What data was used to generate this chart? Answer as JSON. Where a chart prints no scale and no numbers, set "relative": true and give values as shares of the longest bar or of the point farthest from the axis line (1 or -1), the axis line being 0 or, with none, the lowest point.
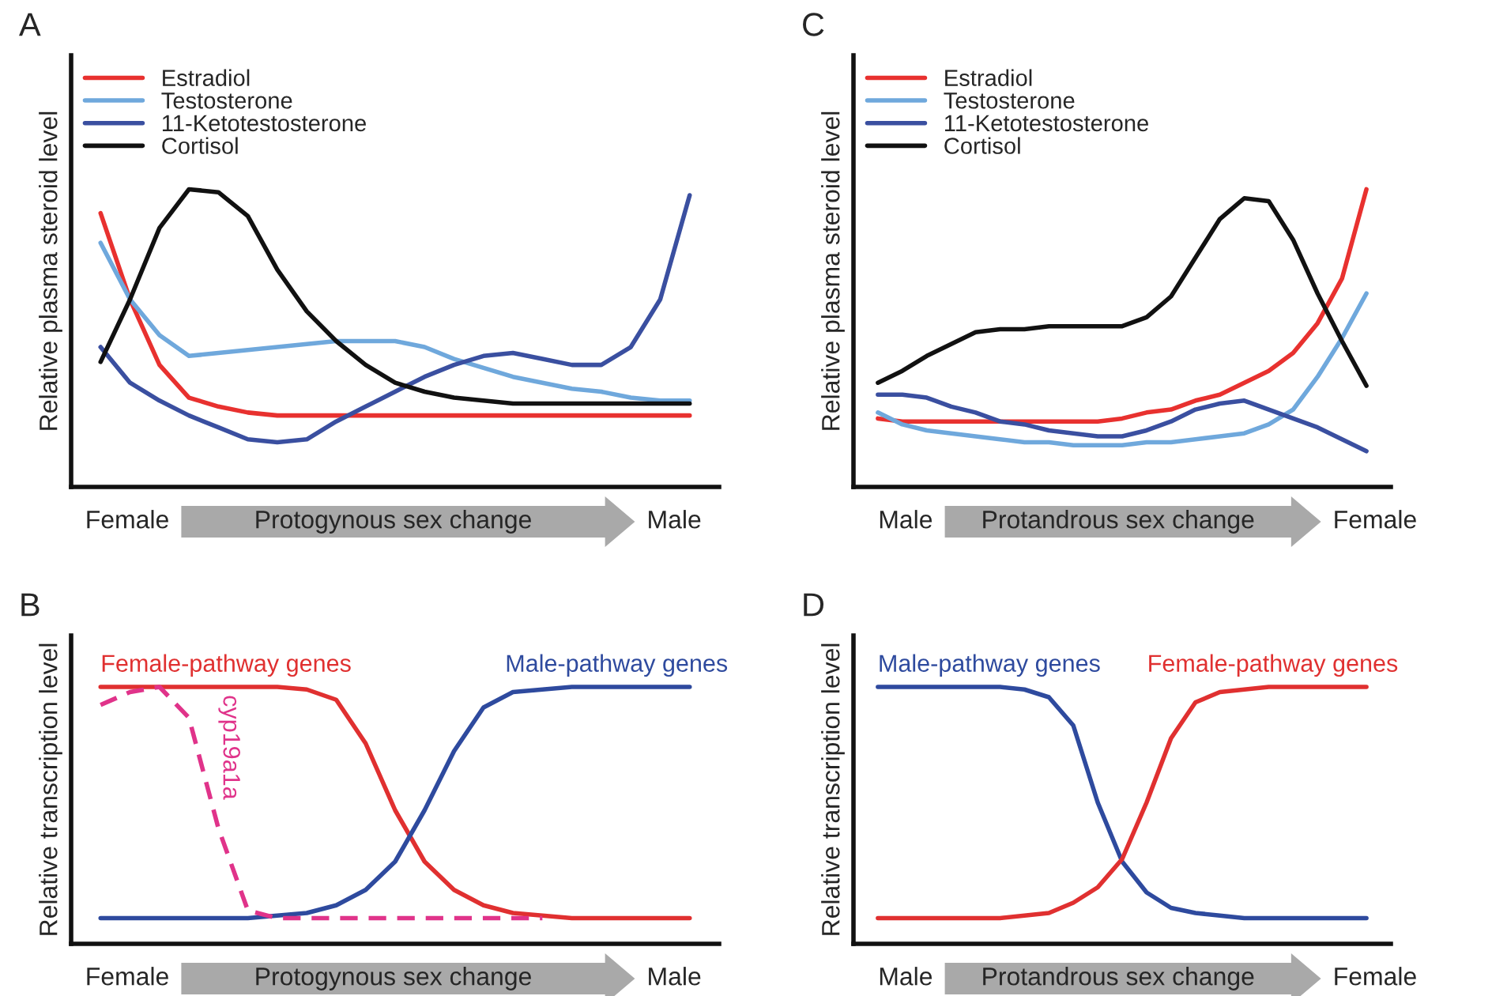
{
  "chart_data": [
    {
      "type": "line",
      "title": "A",
      "ylabel": "Relative plasma steroid level",
      "relative": true,
      "tick_labels": false,
      "legend": "top left",
      "categories": [
        null,
        null,
        null,
        null,
        null,
        null,
        null,
        null,
        null,
        null,
        null,
        null,
        null,
        null,
        null,
        null,
        null,
        null,
        null,
        null,
        null
      ],
      "series": [
        {
          "name": "Estradiol",
          "color": "#e8312f",
          "values": [
            0.92,
            0.63,
            0.41,
            0.3,
            0.27,
            0.25,
            0.24,
            0.24,
            0.24,
            0.24,
            0.24,
            0.24,
            0.24,
            0.24,
            0.24,
            0.24,
            0.24,
            0.24,
            0.24,
            0.24,
            0.24
          ]
        },
        {
          "name": "Testosterone",
          "color": "#6fa8dc",
          "values": [
            0.82,
            0.63,
            0.51,
            0.44,
            0.45,
            0.46,
            0.47,
            0.48,
            0.49,
            0.49,
            0.49,
            0.47,
            0.43,
            0.4,
            0.37,
            0.35,
            0.33,
            0.32,
            0.3,
            0.29,
            0.29
          ]
        },
        {
          "name": "11-Ketotestosterone",
          "color": "#3a4fa0",
          "values": [
            0.47,
            0.35,
            0.29,
            0.24,
            0.2,
            0.16,
            0.15,
            0.16,
            0.22,
            0.27,
            0.32,
            0.37,
            0.41,
            0.44,
            0.45,
            0.43,
            0.41,
            0.41,
            0.47,
            0.63,
            0.98
          ]
        },
        {
          "name": "Cortisol",
          "color": "#111111",
          "values": [
            0.42,
            0.63,
            0.87,
            1.0,
            0.99,
            0.91,
            0.73,
            0.59,
            0.49,
            0.41,
            0.35,
            0.32,
            0.3,
            0.29,
            0.28,
            0.28,
            0.28,
            0.28,
            0.28,
            0.28,
            0.28
          ]
        }
      ],
      "annotations": [
        "Female",
        "Protogynous sex change",
        "Male"
      ]
    },
    {
      "type": "line",
      "title": "C",
      "ylabel": "Relative plasma steroid level",
      "relative": true,
      "tick_labels": false,
      "legend": "top left",
      "categories": [
        null,
        null,
        null,
        null,
        null,
        null,
        null,
        null,
        null,
        null,
        null,
        null,
        null,
        null,
        null,
        null,
        null,
        null,
        null,
        null,
        null
      ],
      "series": [
        {
          "name": "Estradiol",
          "color": "#e8312f",
          "values": [
            0.23,
            0.22,
            0.22,
            0.22,
            0.22,
            0.22,
            0.22,
            0.22,
            0.22,
            0.22,
            0.23,
            0.25,
            0.26,
            0.29,
            0.31,
            0.35,
            0.39,
            0.45,
            0.55,
            0.7,
            1.0
          ]
        },
        {
          "name": "Testosterone",
          "color": "#6fa8dc",
          "values": [
            0.25,
            0.21,
            0.19,
            0.18,
            0.17,
            0.16,
            0.15,
            0.15,
            0.14,
            0.14,
            0.14,
            0.15,
            0.15,
            0.16,
            0.17,
            0.18,
            0.21,
            0.26,
            0.37,
            0.5,
            0.65
          ]
        },
        {
          "name": "11-Ketotestosterone",
          "color": "#3a4fa0",
          "values": [
            0.31,
            0.31,
            0.3,
            0.27,
            0.25,
            0.22,
            0.21,
            0.19,
            0.18,
            0.17,
            0.17,
            0.19,
            0.22,
            0.26,
            0.28,
            0.29,
            0.26,
            0.23,
            0.2,
            0.16,
            0.12
          ]
        },
        {
          "name": "Cortisol",
          "color": "#111111",
          "values": [
            0.35,
            0.39,
            0.44,
            0.48,
            0.52,
            0.53,
            0.53,
            0.54,
            0.54,
            0.54,
            0.54,
            0.57,
            0.64,
            0.77,
            0.9,
            0.97,
            0.96,
            0.83,
            0.65,
            0.49,
            0.34
          ]
        }
      ],
      "annotations": [
        "Male",
        "Protandrous sex change",
        "Female"
      ]
    },
    {
      "type": "line",
      "title": "B",
      "ylabel": "Relative transcription level",
      "relative": true,
      "tick_labels": false,
      "categories": [
        null,
        null,
        null,
        null,
        null,
        null,
        null,
        null,
        null,
        null,
        null,
        null,
        null,
        null,
        null,
        null,
        null,
        null,
        null,
        null,
        null
      ],
      "series": [
        {
          "name": "Female-pathway genes",
          "color": "#e03030",
          "values": [
            1.0,
            1.0,
            1.0,
            1.0,
            1.0,
            1.0,
            1.0,
            0.99,
            0.95,
            0.78,
            0.52,
            0.32,
            0.21,
            0.15,
            0.12,
            0.11,
            0.1,
            0.1,
            0.1,
            0.1,
            0.1
          ]
        },
        {
          "name": "Male-pathway genes",
          "color": "#2e4a9e",
          "values": [
            0.1,
            0.1,
            0.1,
            0.1,
            0.1,
            0.1,
            0.11,
            0.12,
            0.15,
            0.21,
            0.32,
            0.52,
            0.75,
            0.92,
            0.98,
            0.99,
            1.0,
            1.0,
            1.0,
            1.0,
            1.0
          ]
        },
        {
          "name": "cyp19a1a",
          "color": "#e0338a",
          "line_style": "dashed",
          "values": [
            0.93,
            0.98,
            1.0,
            0.88,
            0.45,
            0.13,
            0.1,
            0.1,
            0.1,
            0.1,
            0.1,
            0.1,
            0.1,
            0.1,
            0.1,
            0.1,
            null,
            null,
            null,
            null,
            null
          ]
        }
      ],
      "annotations": [
        "Female",
        "Protogynous sex change",
        "Male"
      ]
    },
    {
      "type": "line",
      "title": "D",
      "ylabel": "Relative transcription level",
      "relative": true,
      "tick_labels": false,
      "categories": [
        null,
        null,
        null,
        null,
        null,
        null,
        null,
        null,
        null,
        null,
        null,
        null,
        null,
        null,
        null,
        null,
        null,
        null,
        null,
        null,
        null
      ],
      "series": [
        {
          "name": "Male-pathway genes",
          "color": "#2e4a9e",
          "values": [
            1.0,
            1.0,
            1.0,
            1.0,
            1.0,
            1.0,
            0.99,
            0.96,
            0.85,
            0.55,
            0.32,
            0.2,
            0.14,
            0.12,
            0.11,
            0.1,
            0.1,
            0.1,
            0.1,
            0.1,
            0.1
          ]
        },
        {
          "name": "Female-pathway genes",
          "color": "#e03030",
          "values": [
            0.1,
            0.1,
            0.1,
            0.1,
            0.1,
            0.1,
            0.11,
            0.12,
            0.16,
            0.22,
            0.33,
            0.55,
            0.8,
            0.94,
            0.98,
            0.99,
            1.0,
            1.0,
            1.0,
            1.0,
            1.0
          ]
        }
      ],
      "annotations": [
        "Male",
        "Protandrous sex change",
        "Female"
      ]
    }
  ]
}
